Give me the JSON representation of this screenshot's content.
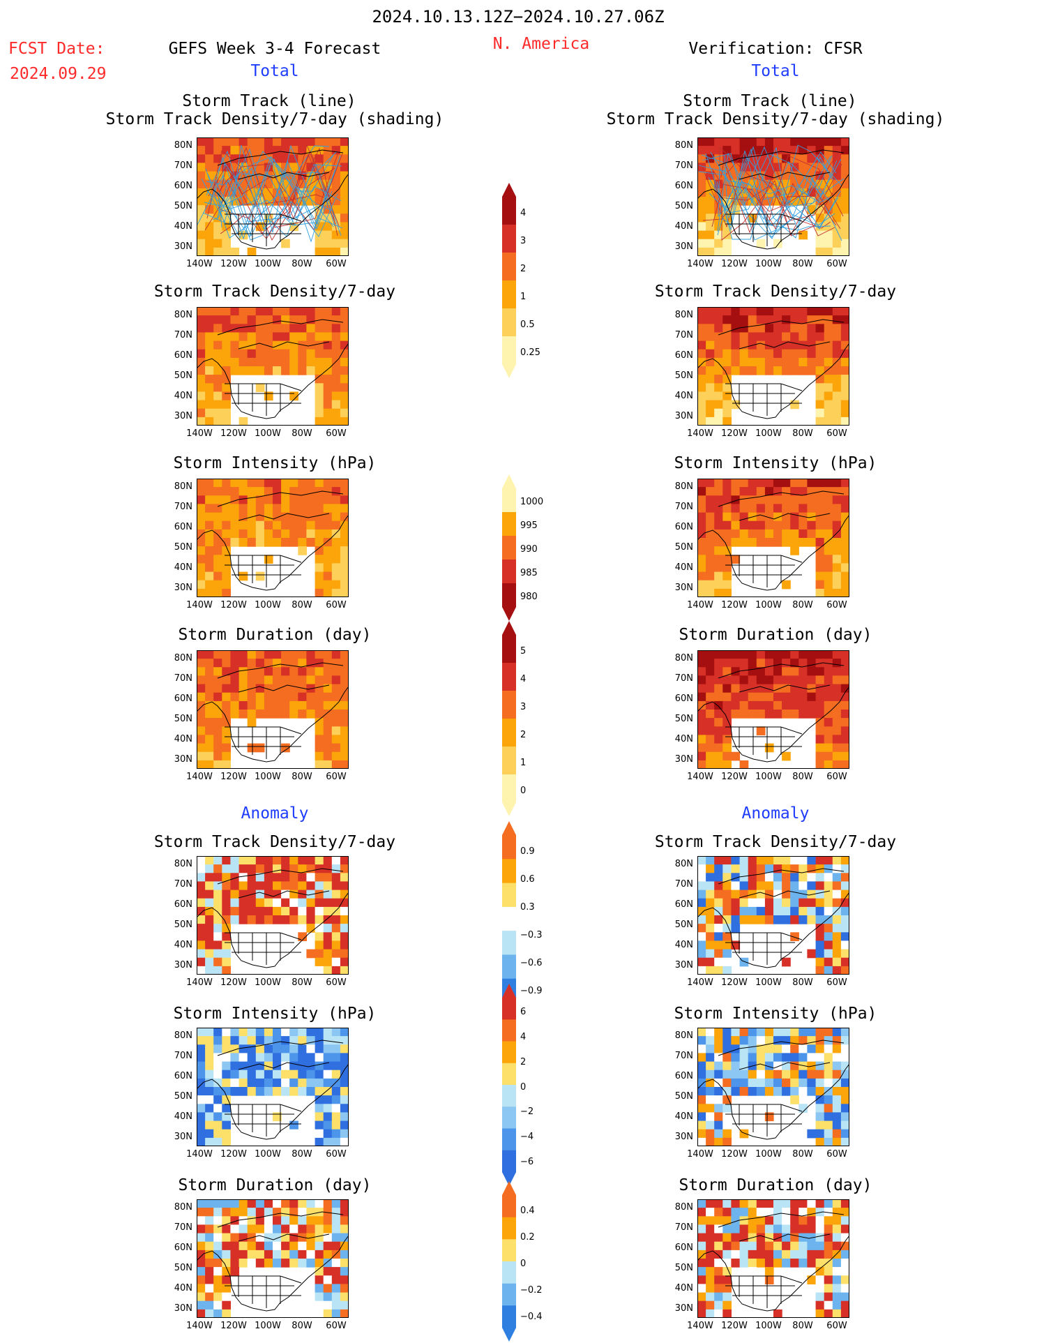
{
  "header": {
    "period": "2024.10.13.12Z−2024.10.27.06Z",
    "region": "N. America",
    "fcst_label": "FCST Date:",
    "fcst_date": "2024.09.29",
    "left_title": "GEFS Week 3-4 Forecast",
    "right_title": "Verification: CFSR",
    "total_label": "Total",
    "anomaly_label": "Anomaly"
  },
  "panel_titles": {
    "track_line": "Storm Track (line)",
    "track_shading": "Storm Track Density/7-day (shading)",
    "density": "Storm Track Density/7-day",
    "intensity": "Storm Intensity (hPa)",
    "duration": "Storm Duration (day)"
  },
  "axes": {
    "lat_ticks": [
      "80N",
      "70N",
      "60N",
      "50N",
      "40N",
      "30N"
    ],
    "lon_ticks": [
      "140W",
      "120W",
      "100W",
      "80W",
      "60W"
    ]
  },
  "colorbars": {
    "density_total": {
      "labels": [
        "4",
        "3",
        "2",
        "1",
        "0.5",
        "0.25"
      ],
      "colors": [
        "#a50f0f",
        "#d73027",
        "#f46d20",
        "#fca50a",
        "#fdd05a",
        "#fff3b0"
      ]
    },
    "intensity_total": {
      "labels": [
        "1000",
        "995",
        "990",
        "985",
        "980"
      ],
      "colors": [
        "#fff3b0",
        "#fca50a",
        "#f46d20",
        "#d73027",
        "#a50f0f"
      ]
    },
    "duration_total": {
      "labels": [
        "5",
        "4",
        "3",
        "2",
        "1",
        "0"
      ],
      "colors": [
        "#a50f0f",
        "#d73027",
        "#f46d20",
        "#fca50a",
        "#fdd05a",
        "#fff3b0"
      ]
    },
    "density_anom": {
      "labels": [
        "0.9",
        "0.6",
        "0.3",
        "−0.3",
        "−0.6",
        "−0.9"
      ],
      "colors": [
        "#f46d20",
        "#fca50a",
        "#fde06a",
        "#ffffff",
        "#b9e4f5",
        "#6db4ef",
        "#2f7fe0"
      ]
    },
    "intensity_anom": {
      "labels": [
        "6",
        "4",
        "2",
        "0",
        "−2",
        "−4",
        "−6"
      ],
      "colors": [
        "#d73027",
        "#f46d20",
        "#fca50a",
        "#fde06a",
        "#b9e4f5",
        "#8cc6f2",
        "#4c95ea",
        "#2f6fe0"
      ]
    },
    "duration_anom": {
      "labels": [
        "0.4",
        "0.2",
        "0",
        "−0.2",
        "−0.4"
      ],
      "colors": [
        "#f46d20",
        "#fca50a",
        "#fde06a",
        "#b9e4f5",
        "#6db4ef",
        "#2f7fe0"
      ]
    }
  },
  "colors": {
    "red_text": "#ff2a2a",
    "blue_text": "#1e3cff"
  }
}
